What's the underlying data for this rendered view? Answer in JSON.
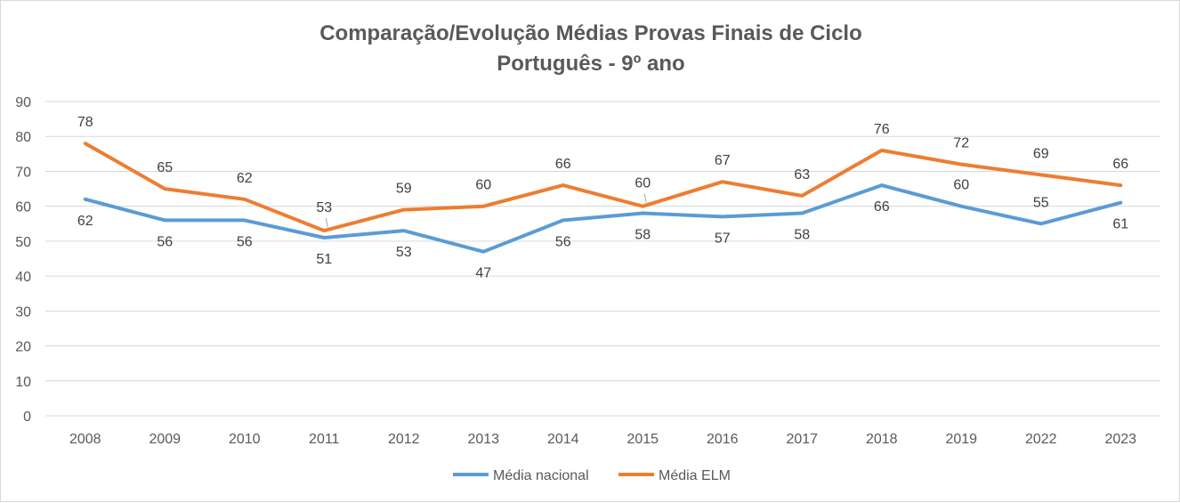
{
  "chart_data": {
    "type": "line",
    "title": "Comparação/Evolução Médias Provas Finais de Ciclo",
    "subtitle": "Português - 9º ano",
    "xlabel": "",
    "ylabel": "",
    "ylim": [
      0,
      90
    ],
    "yticks": [
      0,
      10,
      20,
      30,
      40,
      50,
      60,
      70,
      80,
      90
    ],
    "grid": true,
    "legend_position": "bottom",
    "categories": [
      "2008",
      "2009",
      "2010",
      "2011",
      "2012",
      "2013",
      "2014",
      "2015",
      "2016",
      "2017",
      "2018",
      "2019",
      "2022",
      "2023"
    ],
    "series": [
      {
        "name": "Média nacional",
        "color": "#5b9bd5",
        "values": [
          62,
          56,
          56,
          51,
          53,
          47,
          56,
          58,
          57,
          58,
          66,
          60,
          55,
          61
        ],
        "label_positions": [
          "below",
          "below",
          "below",
          "below",
          "below",
          "below",
          "below",
          "below",
          "below",
          "below",
          "below",
          "above",
          "above",
          "below"
        ]
      },
      {
        "name": "Média ELM",
        "color": "#ed7d31",
        "values": [
          78,
          65,
          62,
          53,
          59,
          60,
          66,
          60,
          67,
          63,
          76,
          72,
          69,
          66
        ],
        "label_positions": [
          "above",
          "above",
          "above",
          "above",
          "above",
          "above",
          "above",
          "above",
          "above",
          "above",
          "above",
          "above",
          "above",
          "above"
        ]
      }
    ]
  }
}
